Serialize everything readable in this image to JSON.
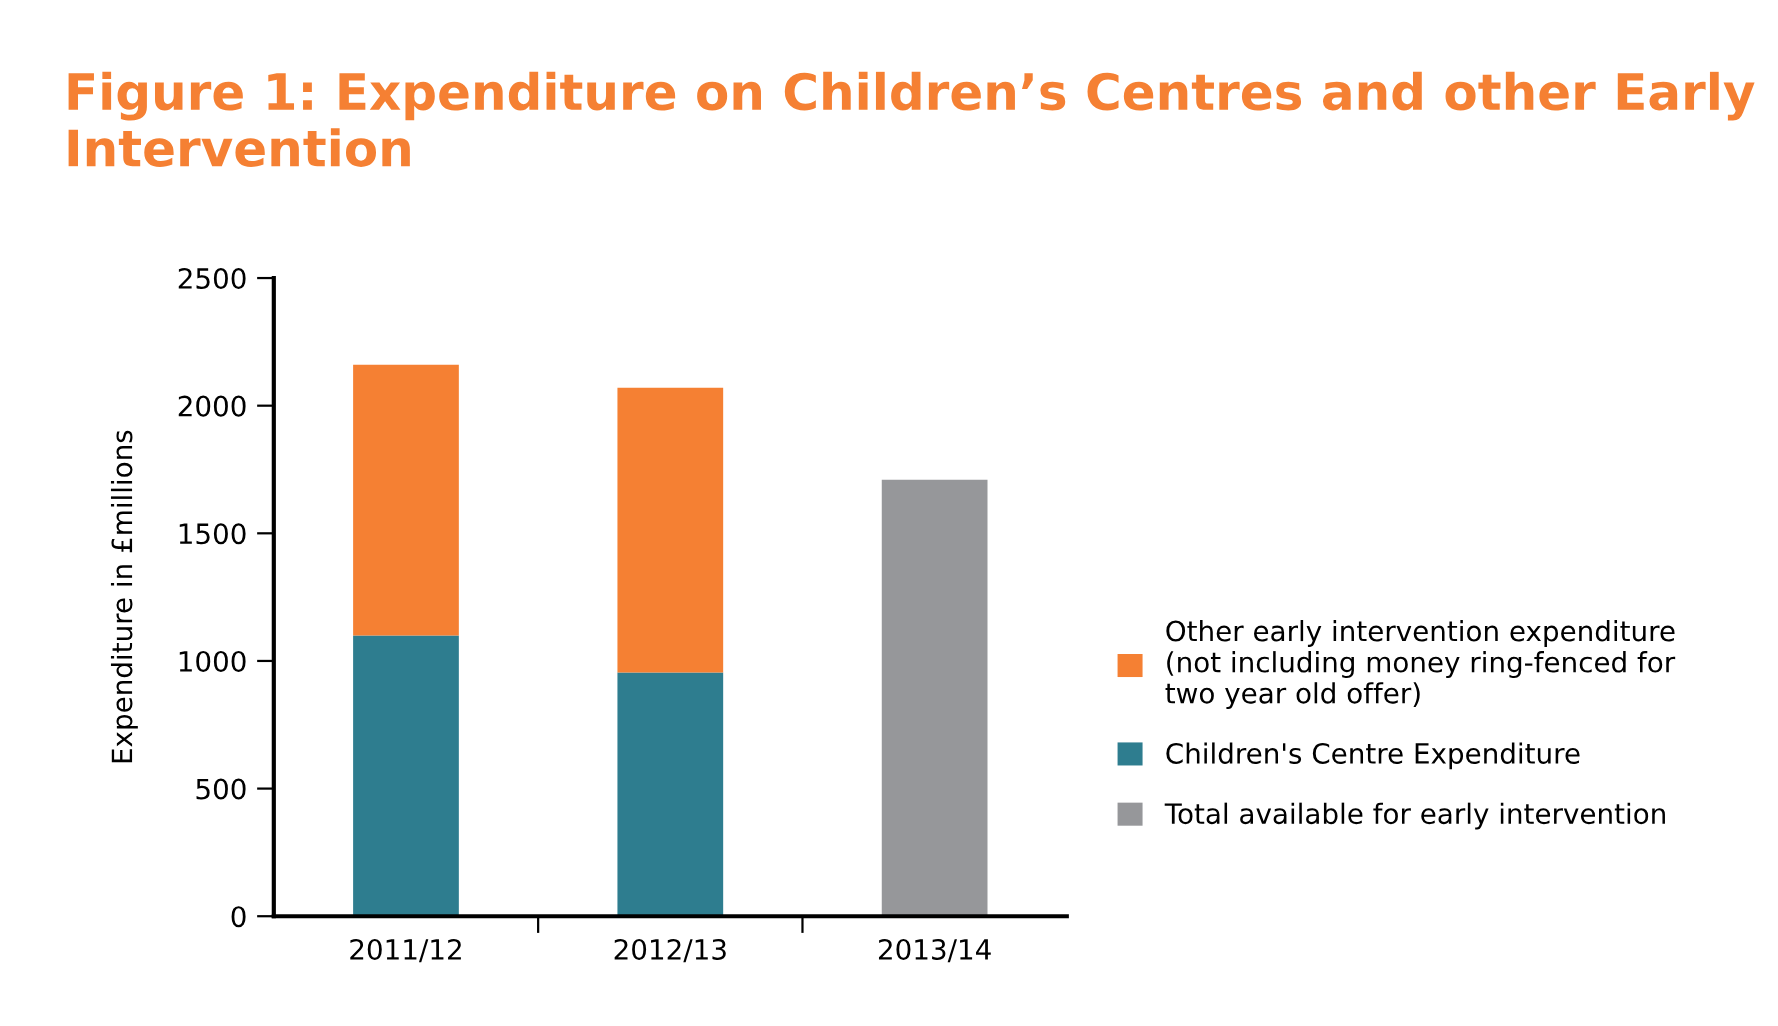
{
  "chart_data": {
    "type": "bar",
    "title": "Figure 1: Expenditure on Children’s Centres and other Early Intervention",
    "ylabel": "Expenditure in £millions",
    "categories": [
      "2011/12",
      "2012/13",
      "2013/14"
    ],
    "stacked": true,
    "series": [
      {
        "name": "Children's Centre Expenditure",
        "color": "#2e7d8f",
        "values": [
          1100,
          955,
          null
        ]
      },
      {
        "name": "Other early intervention expenditure\n(not including money ring-fenced for\ntwo year old offer)",
        "color": "#f58033",
        "values": [
          1060,
          1115,
          null
        ]
      },
      {
        "name": "Total available for early intervention",
        "color": "#96979a",
        "values": [
          null,
          null,
          1710
        ]
      }
    ],
    "ylim": [
      0,
      2500
    ],
    "yticks": [
      0,
      500,
      1000,
      1500,
      2000,
      2500
    ],
    "grid": false,
    "legend": "right"
  }
}
